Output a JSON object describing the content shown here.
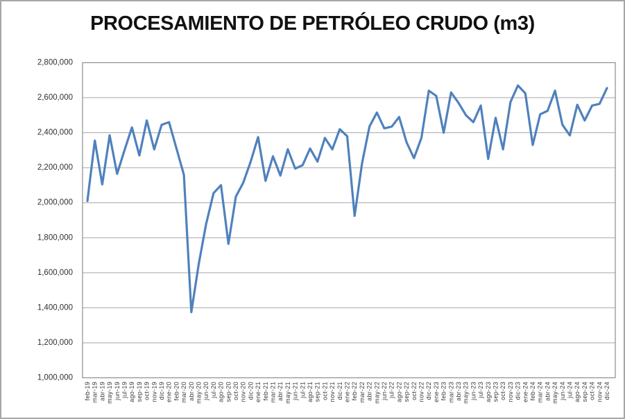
{
  "title": "PROCESAMIENTO DE PETRÓLEO CRUDO (m3)",
  "colors": {
    "line": "#4F81BD",
    "gridline": "#A6A6A6",
    "axis": "#8C8C8C",
    "tick_text": "#3a3a3a",
    "title_text": "#111111",
    "background": "#FFFFFF",
    "frame": "#A6A6A6"
  },
  "chart_data": {
    "type": "line",
    "title": "PROCESAMIENTO DE PETRÓLEO CRUDO (m3)",
    "xlabel": "",
    "ylabel": "",
    "grid": true,
    "legend": false,
    "ylim": [
      1000000,
      2800000
    ],
    "ytick_step": 200000,
    "yticks": [
      {
        "value": 2800000,
        "label": "2,800,000"
      },
      {
        "value": 2600000,
        "label": "2,600,000"
      },
      {
        "value": 2400000,
        "label": "2,400,000"
      },
      {
        "value": 2200000,
        "label": "2,200,000"
      },
      {
        "value": 2000000,
        "label": "2,000,000"
      },
      {
        "value": 1800000,
        "label": "1,800,000"
      },
      {
        "value": 1600000,
        "label": "1,600,000"
      },
      {
        "value": 1400000,
        "label": "1,400,000"
      },
      {
        "value": 1200000,
        "label": "1,200,000"
      },
      {
        "value": 1000000,
        "label": "1,000,000"
      }
    ],
    "categories": [
      "feb-19",
      "mar-19",
      "abr-19",
      "may-19",
      "jun-19",
      "jul-19",
      "ago-19",
      "sep-19",
      "oct-19",
      "nov-19",
      "dic-19",
      "ene-20",
      "feb-20",
      "mar-20",
      "abr-20",
      "may-20",
      "jun-20",
      "jul-20",
      "ago-20",
      "sep-20",
      "oct-20",
      "nov-20",
      "dic-20",
      "ene-21",
      "feb-21",
      "mar-21",
      "abr-21",
      "may-21",
      "jun-21",
      "jul-21",
      "ago-21",
      "sep-21",
      "oct-21",
      "nov-21",
      "dic-21",
      "ene-22",
      "feb-22",
      "mar-22",
      "abr-22",
      "may-22",
      "jun-22",
      "jul-22",
      "ago-22",
      "sep-22",
      "oct-22",
      "nov-22",
      "dic-22",
      "ene-23",
      "feb-23",
      "mar-23",
      "abr-23",
      "may-23",
      "jun-23",
      "jul-23",
      "ago-23",
      "sep-23",
      "oct-23",
      "nov-23",
      "dic-23",
      "ene-24",
      "feb-24",
      "mar-24",
      "abr-24",
      "may-24",
      "jun-24",
      "jul-24",
      "ago-24",
      "sep-24",
      "oct-24",
      "nov-24",
      "dic-24"
    ],
    "series": [
      {
        "name": "Procesamiento de petróleo crudo (m3)",
        "values": [
          2010000,
          2355000,
          2105000,
          2385000,
          2165000,
          2300000,
          2430000,
          2270000,
          2470000,
          2305000,
          2445000,
          2460000,
          2310000,
          2160000,
          1375000,
          1650000,
          1880000,
          2055000,
          2100000,
          1765000,
          2035000,
          2115000,
          2235000,
          2375000,
          2125000,
          2265000,
          2155000,
          2305000,
          2195000,
          2215000,
          2310000,
          2235000,
          2370000,
          2305000,
          2420000,
          2380000,
          1925000,
          2225000,
          2435000,
          2515000,
          2425000,
          2435000,
          2490000,
          2345000,
          2255000,
          2370000,
          2640000,
          2610000,
          2400000,
          2630000,
          2570000,
          2500000,
          2460000,
          2555000,
          2250000,
          2485000,
          2305000,
          2575000,
          2670000,
          2625000,
          2330000,
          2505000,
          2525000,
          2640000,
          2445000,
          2385000,
          2560000,
          2470000,
          2555000,
          2565000,
          2655000
        ]
      }
    ]
  }
}
